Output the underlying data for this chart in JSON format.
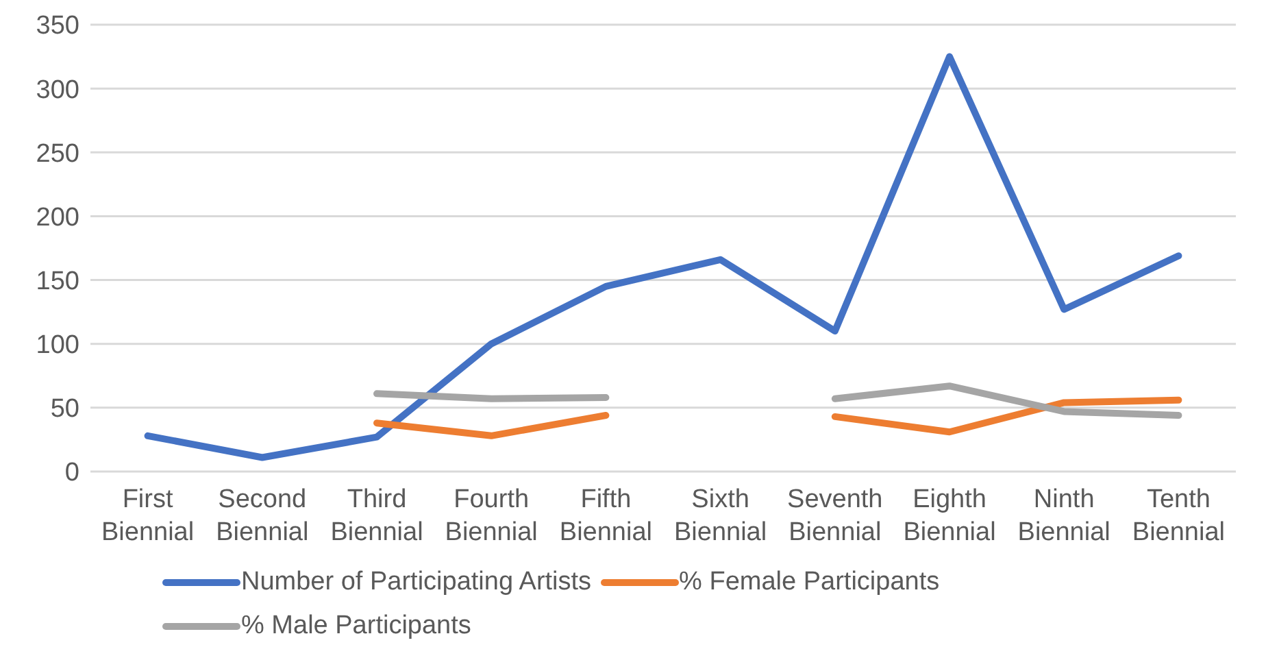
{
  "chart_data": {
    "type": "line",
    "categories": [
      "First Biennial",
      "Second Biennial",
      "Third Biennial",
      "Fourth Biennial",
      "Fifth Biennial",
      "Sixth Biennial",
      "Seventh Biennial",
      "Eighth Biennial",
      "Ninth Biennial",
      "Tenth Biennial"
    ],
    "series": [
      {
        "name": "Number of Participating Artists",
        "color": "#4472c4",
        "values": [
          28,
          11,
          27,
          100,
          145,
          166,
          110,
          325,
          127,
          169
        ]
      },
      {
        "name": "% Female Participants",
        "color": "#ed7d31",
        "values": [
          null,
          null,
          38,
          28,
          44,
          null,
          43,
          31,
          54,
          56
        ]
      },
      {
        "name": "% Male Participants",
        "color": "#a5a5a5",
        "values": [
          null,
          null,
          61,
          57,
          58,
          null,
          57,
          67,
          47,
          44
        ]
      }
    ],
    "ylim": [
      0,
      350
    ],
    "yticks": [
      0,
      50,
      100,
      150,
      200,
      250,
      300,
      350
    ],
    "grid": "y",
    "legend": "bottom",
    "marker": "none",
    "line_style": "solid"
  }
}
